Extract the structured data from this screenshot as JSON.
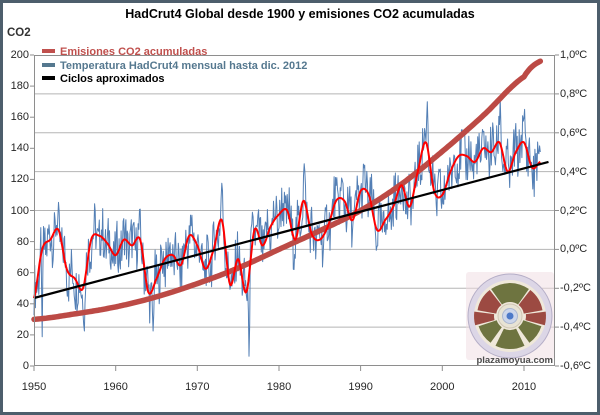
{
  "chart_data": {
    "type": "line",
    "title": "HadCrut4 Global desde 1900 y emisiones CO2 acumuladas",
    "left_axis": {
      "label": "CO2",
      "range": [
        0,
        200
      ],
      "ticks": [
        200,
        180,
        160,
        140,
        120,
        100,
        80,
        60,
        40,
        20,
        0
      ]
    },
    "right_axis": {
      "range": [
        -0.6,
        1.0
      ],
      "ticks": [
        {
          "value": 1.0,
          "label": "1,0ºC"
        },
        {
          "value": 0.8,
          "label": "0,8ºC"
        },
        {
          "value": 0.6,
          "label": "0,6ºC"
        },
        {
          "value": 0.4,
          "label": "0,4ºC"
        },
        {
          "value": 0.2,
          "label": "0,2ºC"
        },
        {
          "value": 0.0,
          "label": "0,0ºC"
        },
        {
          "value": -0.2,
          "label": "-0,2ºC"
        },
        {
          "value": -0.4,
          "label": "-0,4ºC"
        },
        {
          "value": -0.6,
          "label": "-0,6ºC"
        }
      ]
    },
    "x_axis": {
      "range": [
        1950,
        2013.8
      ],
      "ticks": [
        {
          "value": 1950,
          "label": "1950"
        },
        {
          "value": 1960,
          "label": "1960"
        },
        {
          "value": 1970,
          "label": "1970"
        },
        {
          "value": 1980,
          "label": "1980"
        },
        {
          "value": 1990,
          "label": "1990"
        },
        {
          "value": 2000,
          "label": "2000"
        },
        {
          "value": 2010,
          "label": "2010"
        }
      ]
    },
    "grid": {
      "horizontal_values": [
        0.8,
        0.6,
        0.4,
        0.2,
        0.0,
        -0.2,
        -0.4
      ],
      "vertical": false
    },
    "legend": {
      "items": [
        {
          "label": "Emisiones CO2 acumuladas",
          "color": "#c0504d"
        },
        {
          "label": "Temperatura HadCrut4 mensual hasta dic. 2012",
          "color": "#55788f"
        },
        {
          "label": "Ciclos aproximados",
          "color": "#000000"
        }
      ]
    },
    "temperature_annual": {
      "start_year": 1950,
      "end_year": 2012,
      "values": [
        -0.25,
        0.0,
        0.05,
        0.1,
        -0.1,
        -0.15,
        -0.2,
        0.05,
        0.07,
        0.03,
        -0.03,
        0.05,
        0.02,
        0.05,
        -0.22,
        -0.15,
        -0.05,
        -0.03,
        -0.08,
        0.07,
        0.02,
        -0.1,
        0.0,
        0.15,
        -0.18,
        -0.05,
        -0.22,
        0.1,
        0.02,
        0.12,
        0.18,
        0.2,
        0.05,
        0.25,
        0.08,
        0.05,
        0.12,
        0.25,
        0.25,
        0.15,
        0.3,
        0.28,
        0.1,
        0.15,
        0.22,
        0.33,
        0.22,
        0.4,
        0.55,
        0.3,
        0.28,
        0.4,
        0.48,
        0.48,
        0.45,
        0.52,
        0.5,
        0.55,
        0.4,
        0.5,
        0.55,
        0.42,
        0.45
      ]
    },
    "series": [
      {
        "id": "co2_emissions",
        "name": "Emisiones CO2 acumuladas",
        "axis": "left",
        "color": "#bc4a45",
        "width": 5.5,
        "points": [
          [
            1950,
            30
          ],
          [
            1955,
            33.5
          ],
          [
            1960,
            38
          ],
          [
            1965,
            44.5
          ],
          [
            1970,
            53
          ],
          [
            1975,
            63
          ],
          [
            1980,
            75
          ],
          [
            1985,
            87
          ],
          [
            1990,
            100
          ],
          [
            1995,
            117
          ],
          [
            2000,
            138
          ],
          [
            2005,
            161
          ],
          [
            2010,
            186
          ],
          [
            2012,
            196
          ]
        ]
      },
      {
        "id": "temp_monthly",
        "name": "Temperatura HadCrut4 mensual hasta dic. 2012",
        "axis": "right",
        "color": "#537fb5",
        "width": 1,
        "source": "temperature_annual",
        "noise_amplitude": 0.13,
        "extremes": [
          [
            1951.0,
            -0.45
          ],
          [
            1956.2,
            -0.42
          ],
          [
            1964.6,
            -0.42
          ],
          [
            1973.0,
            0.34
          ],
          [
            1976.3,
            -0.55
          ],
          [
            1983.1,
            0.44
          ],
          [
            1998.2,
            0.76
          ],
          [
            2007.1,
            0.78
          ],
          [
            2010.1,
            0.72
          ],
          [
            2012.6,
            0.24
          ]
        ]
      },
      {
        "id": "temp_smooth",
        "name": "Temperatura suavizada",
        "axis": "right",
        "color": "#ff0000",
        "width": 2,
        "source": "temperature_annual"
      },
      {
        "id": "cycles_trend",
        "name": "Ciclos aproximados",
        "axis": "right",
        "color": "#000000",
        "width": 2.2,
        "points": [
          [
            1950,
            -0.25
          ],
          [
            2013,
            0.45
          ]
        ]
      }
    ]
  },
  "watermark": {
    "text": "plazamoyua.com"
  }
}
